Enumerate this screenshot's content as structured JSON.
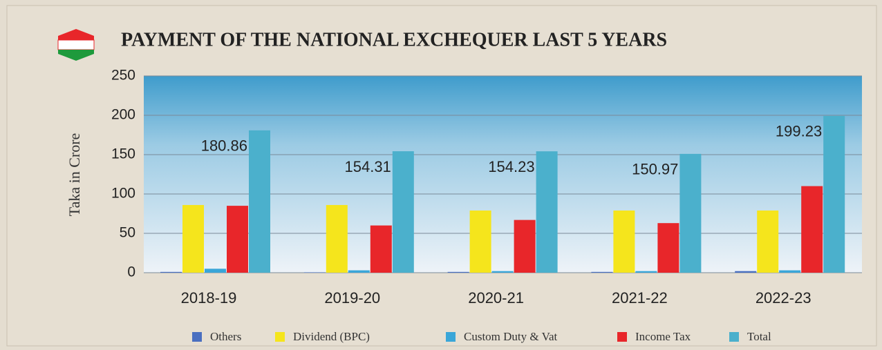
{
  "chart_data": {
    "type": "bar",
    "title": "PAYMENT OF THE NATIONAL EXCHEQUER LAST 5 YEARS",
    "y_label": "Taka in Crore",
    "categories": [
      "2018-19",
      "2019-20",
      "2020-21",
      "2021-22",
      "2022-23"
    ],
    "series": [
      {
        "name": "Others",
        "color": "#4a6fc0",
        "values": [
          1,
          0.5,
          1,
          1,
          2
        ]
      },
      {
        "name": "Dividend (BPC)",
        "color": "#f5e51c",
        "values": [
          86,
          86,
          79,
          79,
          79
        ]
      },
      {
        "name": "Custom Duty & Vat",
        "color": "#3aa6d8",
        "values": [
          5,
          3,
          2,
          2,
          3
        ]
      },
      {
        "name": "Income Tax",
        "color": "#e8262a",
        "values": [
          85,
          60,
          67,
          63,
          110
        ]
      },
      {
        "name": "Total",
        "color": "#4bb0cc",
        "values": [
          180.86,
          154.31,
          154.23,
          150.97,
          199.23
        ],
        "show_labels": true
      }
    ],
    "ylim": [
      0,
      250
    ],
    "yticks": [
      0,
      50,
      100,
      150,
      200,
      250
    ],
    "grid": true,
    "legend": "bottom"
  }
}
